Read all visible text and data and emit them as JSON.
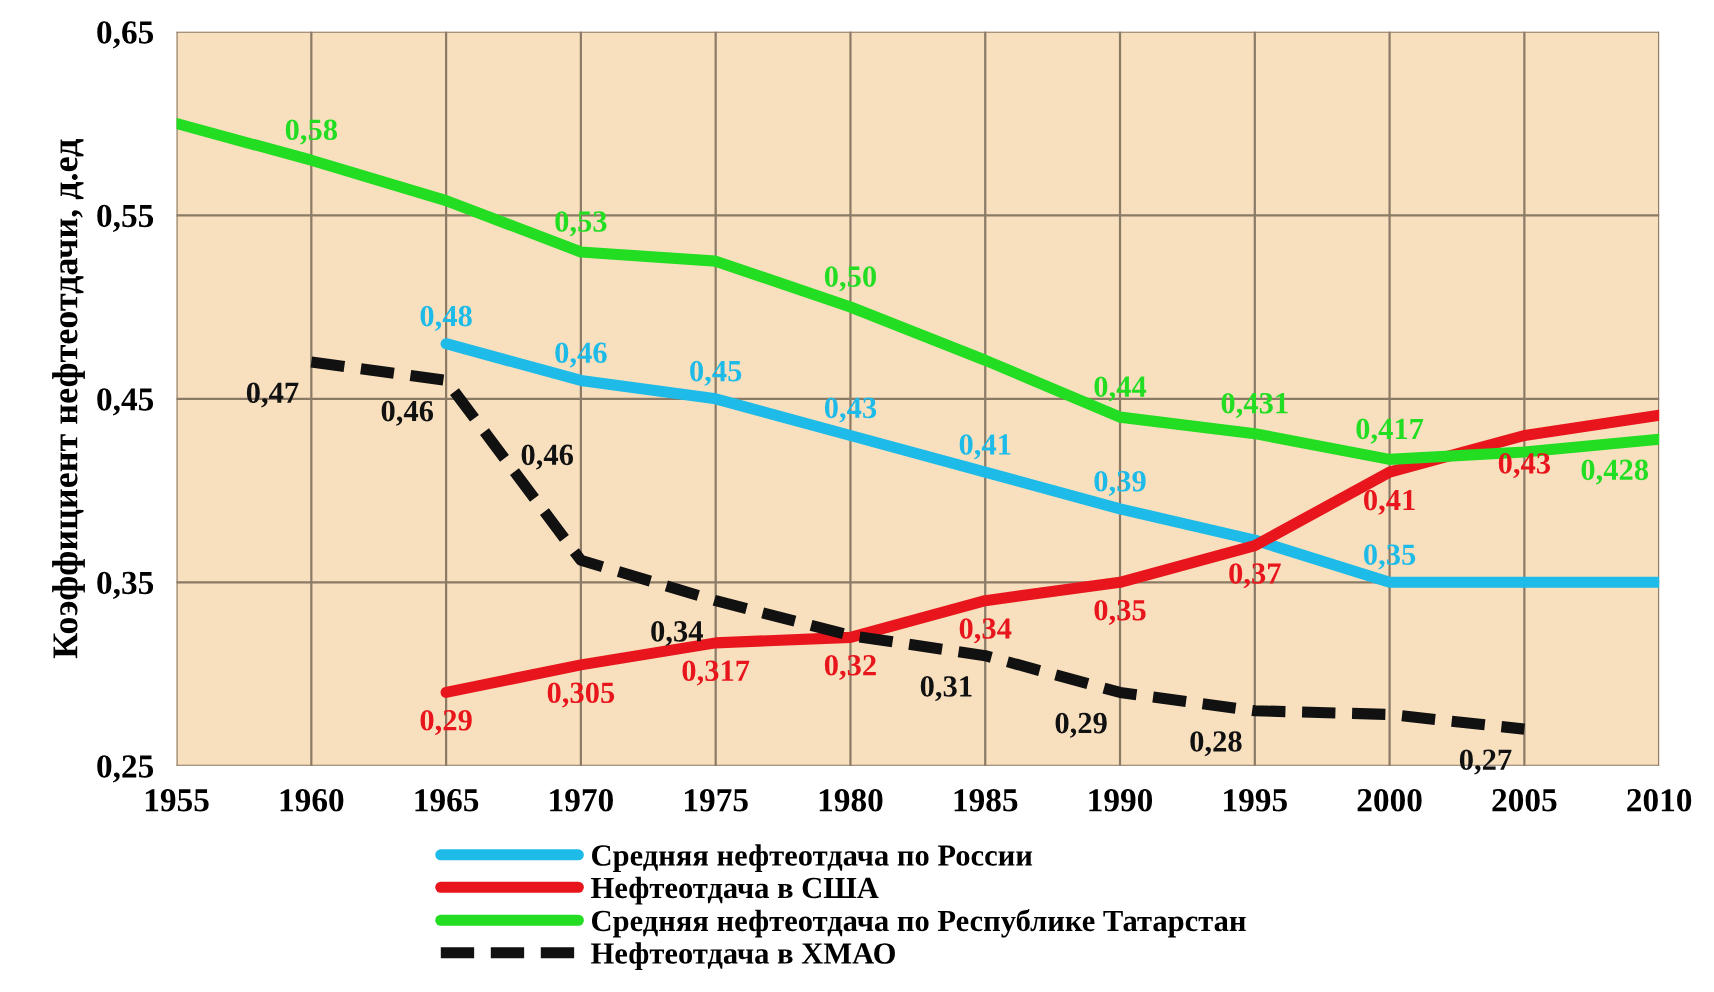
{
  "chart_data": {
    "type": "line",
    "ylabel": "Коэффициент нефтеотдачи, д.ед",
    "x": [
      1955,
      1960,
      1965,
      1970,
      1975,
      1980,
      1985,
      1990,
      1995,
      2000,
      2005,
      2010
    ],
    "xlim": [
      1955,
      2010
    ],
    "xticks": [
      1955,
      1960,
      1965,
      1970,
      1975,
      1980,
      1985,
      1990,
      1995,
      2000,
      2005,
      2010
    ],
    "ylim": [
      0.25,
      0.65
    ],
    "yticks": [
      {
        "value": 0.25,
        "label": "0,25"
      },
      {
        "value": 0.35,
        "label": "0,35"
      },
      {
        "value": 0.45,
        "label": "0,45"
      },
      {
        "value": 0.55,
        "label": "0,55"
      },
      {
        "value": 0.65,
        "label": "0,65"
      }
    ],
    "grid": true,
    "legend": "bottom",
    "marker": "none",
    "annotations": [
      "0,46"
    ],
    "series": [
      {
        "name": "Средняя нефтеотдача по России",
        "color": "#1ebbe8",
        "line_style": "solid",
        "values": [
          null,
          null,
          0.48,
          0.46,
          0.45,
          0.43,
          0.41,
          0.39,
          0.373,
          0.35,
          0.35,
          0.35
        ],
        "value_labels": [
          null,
          null,
          "0,48",
          "0,46",
          "0,45",
          "0,43",
          "0,41",
          "0,39",
          null,
          "0,35",
          null,
          null
        ]
      },
      {
        "name": "Нефтеотдача в США",
        "color": "#e8161c",
        "line_style": "solid",
        "values": [
          null,
          null,
          0.29,
          0.305,
          0.317,
          0.32,
          0.34,
          0.35,
          0.37,
          0.41,
          0.43,
          0.441
        ],
        "value_labels": [
          null,
          null,
          "0,29",
          "0,305",
          "0,317",
          "0,32",
          "0,34",
          "0,35",
          "0,37",
          "0,41",
          "0,43",
          null
        ]
      },
      {
        "name": "Средняя нефтеотдача по Республике Татарстан",
        "color": "#22dd22",
        "line_style": "solid",
        "values": [
          0.6,
          0.58,
          0.558,
          0.53,
          0.525,
          0.5,
          0.471,
          0.44,
          0.431,
          0.417,
          0.421,
          0.428
        ],
        "value_labels": [
          null,
          "0,58",
          null,
          "0,53",
          null,
          "0,50",
          null,
          "0,44",
          "0,431",
          "0,417",
          null,
          "0,428"
        ]
      },
      {
        "name": "Нефтеотдача в ХМАО",
        "color": "#111111",
        "line_style": "dashed",
        "values": [
          null,
          0.47,
          0.46,
          0.362,
          0.34,
          0.321,
          0.31,
          0.29,
          0.28,
          0.278,
          0.27,
          null
        ],
        "value_labels": [
          null,
          "0,47",
          "0,46",
          null,
          "0,34",
          null,
          "0,31",
          "0,29",
          "0,28",
          null,
          "0,27",
          null
        ]
      }
    ]
  }
}
